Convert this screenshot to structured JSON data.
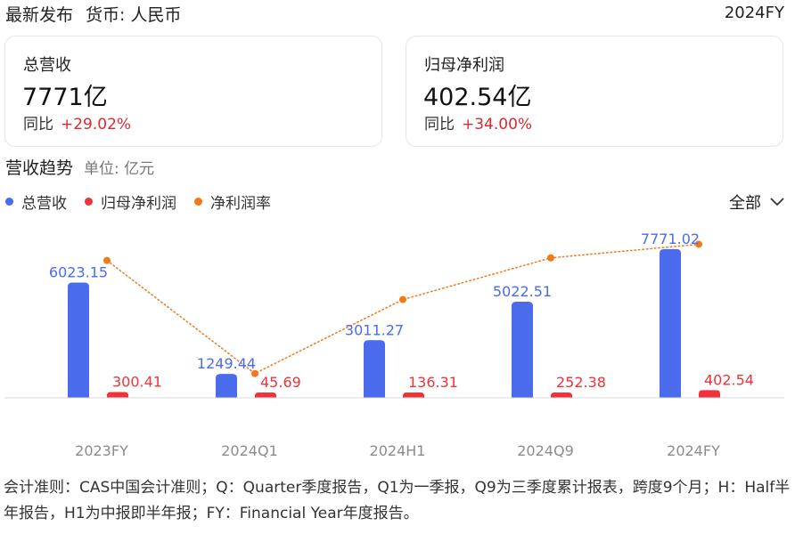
{
  "header": {
    "title": "最新发布",
    "currency": "货币: 人民币",
    "period": "2024FY"
  },
  "cards": [
    {
      "label": "总营收",
      "value": "7771亿",
      "yoy_label": "同比",
      "yoy_value": "+29.02%"
    },
    {
      "label": "归母净利润",
      "value": "402.54亿",
      "yoy_label": "同比",
      "yoy_value": "+34.00%"
    }
  ],
  "section": {
    "title": "营收趋势",
    "unit": "单位: 亿元",
    "filter_label": "全部"
  },
  "legend": [
    {
      "label": "总营收",
      "color": "#4a6bec"
    },
    {
      "label": "归母净利润",
      "color": "#f0323a"
    },
    {
      "label": "净利润率",
      "color": "#f07a1a"
    }
  ],
  "chart_data": {
    "type": "bar",
    "categories": [
      "2023FY",
      "2024Q1",
      "2024H1",
      "2024Q9",
      "2024FY"
    ],
    "series": [
      {
        "name": "总营收",
        "type": "bar",
        "color": "#4a6bec",
        "values": [
          6023.15,
          1249.44,
          3011.27,
          5022.51,
          7771.02
        ],
        "labels": [
          "6023.15",
          "1249.44",
          "3011.27",
          "5022.51",
          "7771.02"
        ]
      },
      {
        "name": "归母净利润",
        "type": "bar",
        "color": "#f0323a",
        "values": [
          300.41,
          45.69,
          136.31,
          252.38,
          402.54
        ],
        "labels": [
          "300.41",
          "45.69",
          "136.31",
          "252.38",
          "402.54"
        ]
      },
      {
        "name": "净利润率",
        "type": "line",
        "color": "#f07a1a",
        "values": [
          4.99,
          3.66,
          4.53,
          5.02,
          5.18
        ]
      }
    ],
    "ylim_bar": [
      0,
      8000
    ],
    "ylim_line": [
      3.5,
      5.3
    ],
    "line_style": "dotted",
    "grid": false,
    "legend_position": "top-left"
  },
  "footnote": "会计准则：CAS中国会计准则；Q：Quarter季度报告，Q1为一季报，Q9为三季度累计报表，跨度9个月；H：Half半年报告，H1为中报即半年报；FY：Financial Year年度报告。"
}
